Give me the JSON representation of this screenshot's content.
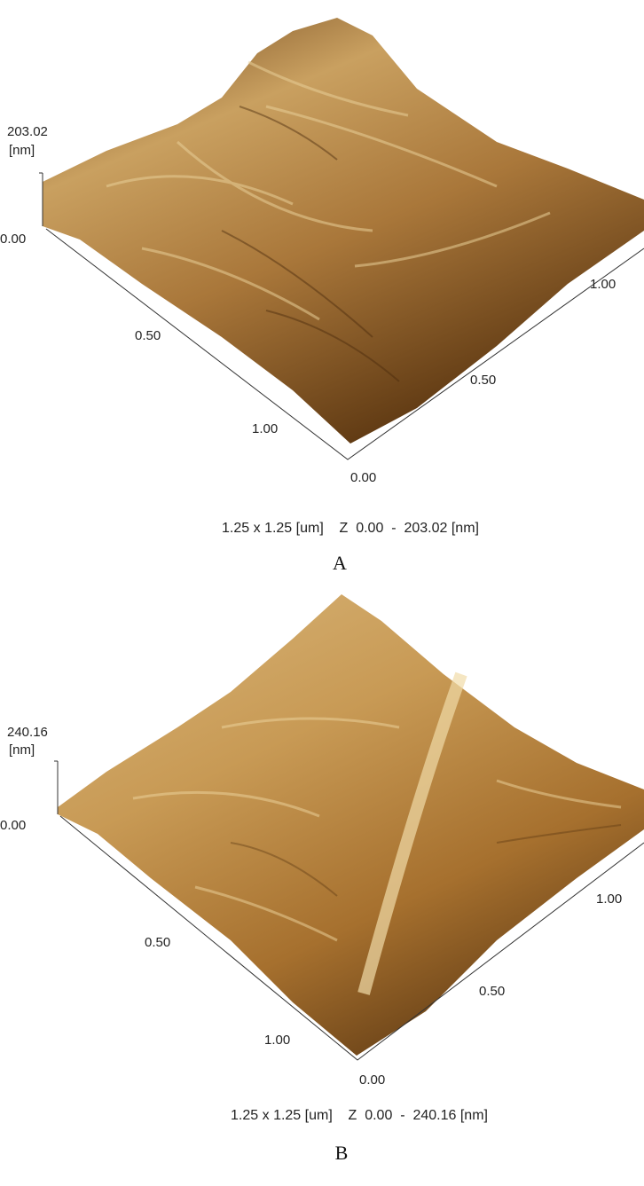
{
  "panels": [
    {
      "z_max_label": "203.02",
      "z_unit": "[nm]",
      "z_min_label": "0.00",
      "left_axis_ticks": [
        "0.50",
        "1.00"
      ],
      "right_axis_ticks": [
        "0.00",
        "0.50",
        "1.00"
      ],
      "caption": "1.25 x 1.25 [um]    Z  0.00  -  203.02 [nm]",
      "label": "A"
    },
    {
      "z_max_label": "240.16",
      "z_unit": "[nm]",
      "z_min_label": "0.00",
      "left_axis_ticks": [
        "0.50",
        "1.00"
      ],
      "right_axis_ticks": [
        "0.00",
        "0.50",
        "1.00"
      ],
      "caption": "1.25 x 1.25 [um]    Z  0.00  -  240.16 [nm]",
      "label": "B"
    }
  ]
}
